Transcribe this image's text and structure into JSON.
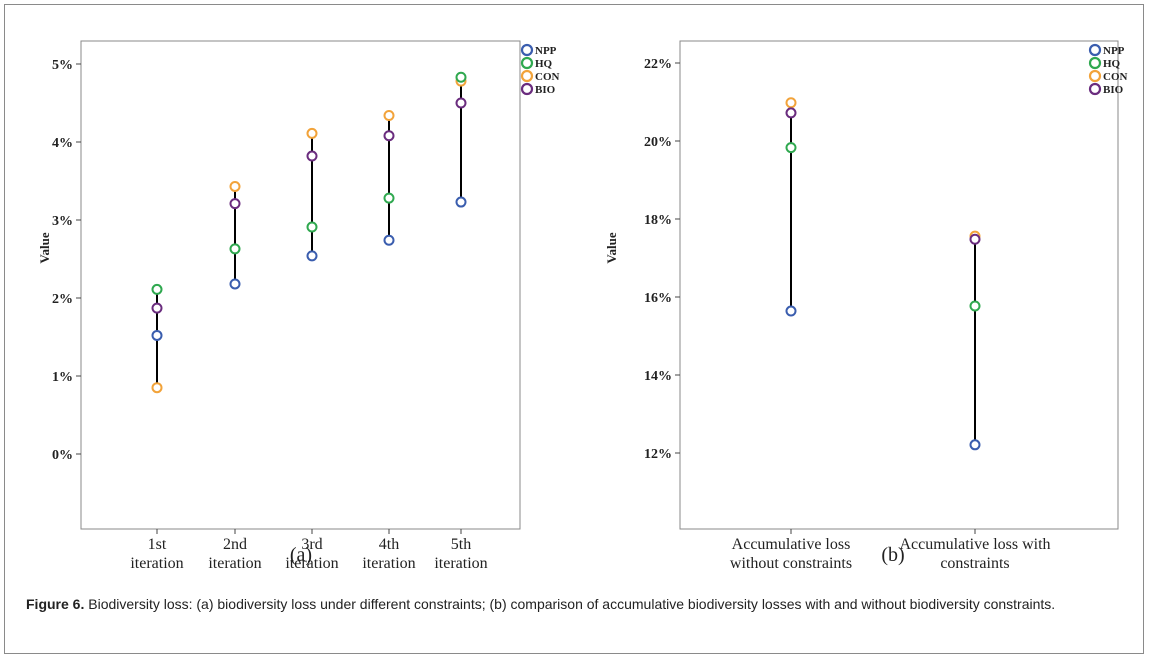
{
  "caption": {
    "label": "Figure 6.",
    "text": " Biodiversity loss: (a) biodiversity loss under different constraints; (b) comparison of accumulative biodiversity losses with and without biodiversity constraints."
  },
  "colors": {
    "NPP": "#3a5dae",
    "HQ": "#2fa84f",
    "CON": "#f2a33a",
    "BIO": "#6a2c7e",
    "range_line": "#000000"
  },
  "chart_data": [
    {
      "type": "scatter",
      "panel_label": "(a)",
      "ylabel": "Value",
      "xlabel": "",
      "ylim": [
        0,
        5
      ],
      "yticks": [
        "0%",
        "1%",
        "2%",
        "3%",
        "4%",
        "5%"
      ],
      "categories": [
        "1st\niteration",
        "2nd\niteration",
        "3rd\niteration",
        "4th\niteration",
        "5th\niteration"
      ],
      "legend": [
        "NPP",
        "HQ",
        "CON",
        "BIO"
      ],
      "legend_position": "top-right",
      "series": [
        {
          "name": "NPP",
          "values": [
            1.52,
            2.18,
            2.54,
            2.74,
            3.23
          ]
        },
        {
          "name": "HQ",
          "values": [
            2.11,
            2.63,
            2.91,
            3.28,
            4.83
          ]
        },
        {
          "name": "CON",
          "values": [
            0.85,
            3.43,
            4.11,
            4.34,
            4.78
          ]
        },
        {
          "name": "BIO",
          "values": [
            1.87,
            3.21,
            3.82,
            4.08,
            4.5
          ]
        }
      ]
    },
    {
      "type": "scatter",
      "panel_label": "(b)",
      "ylabel": "Value",
      "xlabel": "",
      "ylim": [
        11.5,
        22.5
      ],
      "yticks": [
        "12%",
        "14%",
        "16%",
        "18%",
        "20%",
        "22%"
      ],
      "ytick_values": [
        12,
        14,
        16,
        18,
        20,
        22
      ],
      "categories": [
        "Accumulative loss\nwithout constraints",
        "Accumulative loss with\nconstraints"
      ],
      "legend": [
        "NPP",
        "HQ",
        "CON",
        "BIO"
      ],
      "legend_position": "top-right",
      "series": [
        {
          "name": "NPP",
          "values": [
            15.64,
            12.21
          ]
        },
        {
          "name": "HQ",
          "values": [
            19.83,
            15.77
          ]
        },
        {
          "name": "CON",
          "values": [
            20.98,
            17.56
          ]
        },
        {
          "name": "BIO",
          "values": [
            20.72,
            17.48
          ]
        }
      ]
    }
  ]
}
